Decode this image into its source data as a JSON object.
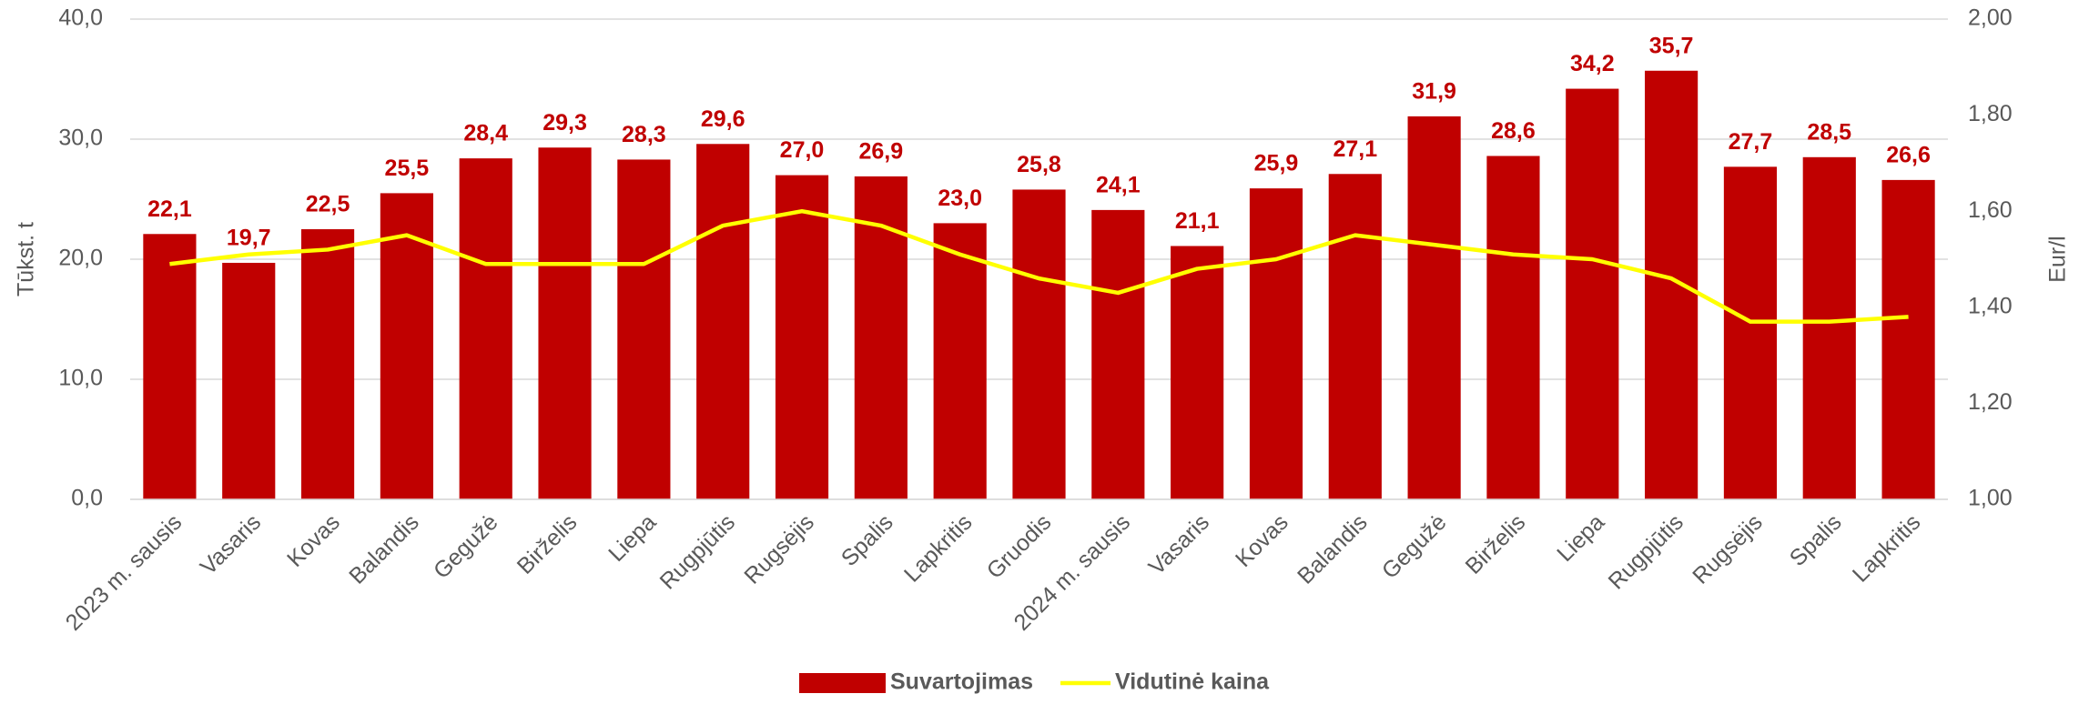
{
  "chart_data": {
    "type": "bar_line",
    "y_label": "Tūkst. t",
    "y2_label": "Eur/l",
    "categories": [
      "2023 m. sausis",
      "Vasaris",
      "Kovas",
      "Balandis",
      "Gegužė",
      "Birželis",
      "Liepa",
      "Rugpjūtis",
      "Rugsėjis",
      "Spalis",
      "Lapkritis",
      "Gruodis",
      "2024 m. sausis",
      "Vasaris",
      "Kovas",
      "Balandis",
      "Gegužė",
      "Birželis",
      "Liepa",
      "Rugpjūtis",
      "Rugsėjis",
      "Spalis",
      "Lapkritis"
    ],
    "series": [
      {
        "name": "Suvartojimas",
        "color": "#c00000",
        "type": "bar",
        "values": [
          22.1,
          19.7,
          22.5,
          25.5,
          28.4,
          29.3,
          28.3,
          29.6,
          27.0,
          26.9,
          23.0,
          25.8,
          24.1,
          21.1,
          25.9,
          27.1,
          31.9,
          28.6,
          34.2,
          35.7,
          27.7,
          28.5,
          26.6
        ],
        "value_labels": [
          "22,1",
          "19,7",
          "22,5",
          "25,5",
          "28,4",
          "29,3",
          "28,3",
          "29,6",
          "27,0",
          "26,9",
          "23,0",
          "25,8",
          "24,1",
          "21,1",
          "25,9",
          "27,1",
          "31,9",
          "28,6",
          "34,2",
          "35,7",
          "27,7",
          "28,5",
          "26,6"
        ]
      },
      {
        "name": "Vidutinė kaina",
        "color": "#ffff00",
        "type": "line",
        "axis": "y2",
        "values": [
          1.49,
          1.51,
          1.52,
          1.55,
          1.49,
          1.49,
          1.49,
          1.57,
          1.6,
          1.57,
          1.51,
          1.46,
          1.43,
          1.48,
          1.5,
          1.55,
          1.53,
          1.51,
          1.5,
          1.46,
          1.37,
          1.37,
          1.38
        ]
      }
    ],
    "ylim": [
      0,
      40
    ],
    "yticks": [
      {
        "value": 0,
        "label": "0,0"
      },
      {
        "value": 10,
        "label": "10,0"
      },
      {
        "value": 20,
        "label": "20,0"
      },
      {
        "value": 30,
        "label": "30,0"
      },
      {
        "value": 40,
        "label": "40,0"
      }
    ],
    "y2lim": [
      1,
      2
    ],
    "y2ticks": [
      {
        "value": 1,
        "label": "1,00"
      },
      {
        "value": 1.2,
        "label": "1,20"
      },
      {
        "value": 1.4,
        "label": "1,40"
      },
      {
        "value": 1.6,
        "label": "1,60"
      },
      {
        "value": 1.8,
        "label": "1,80"
      },
      {
        "value": 2,
        "label": "2,00"
      }
    ],
    "grid": true,
    "legend": "bottom"
  }
}
